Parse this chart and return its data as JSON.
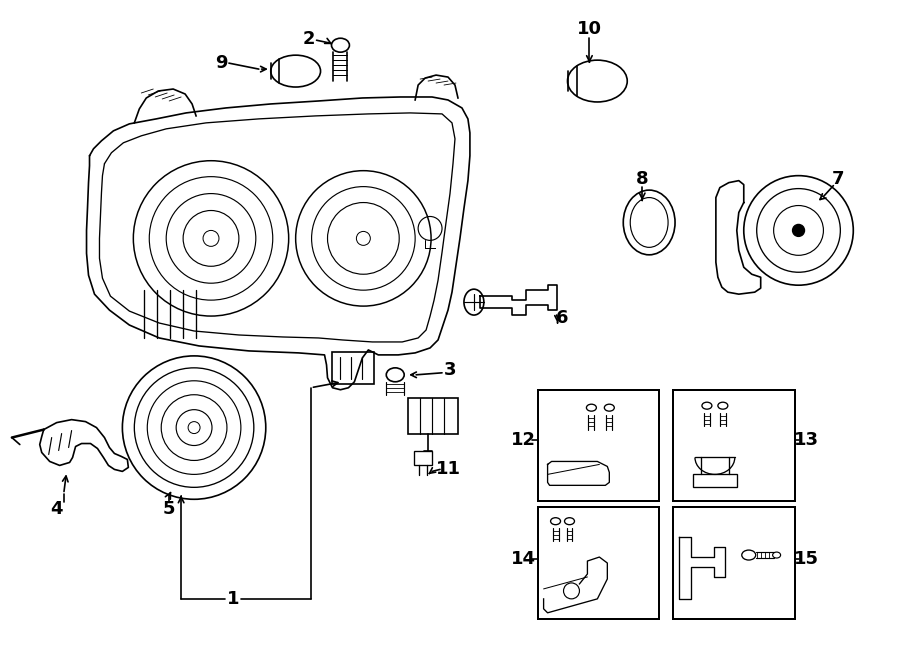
{
  "bg_color": "#ffffff",
  "line_color": "#000000",
  "line_width": 1.2,
  "fig_width": 9.0,
  "fig_height": 6.61,
  "dpi": 100
}
